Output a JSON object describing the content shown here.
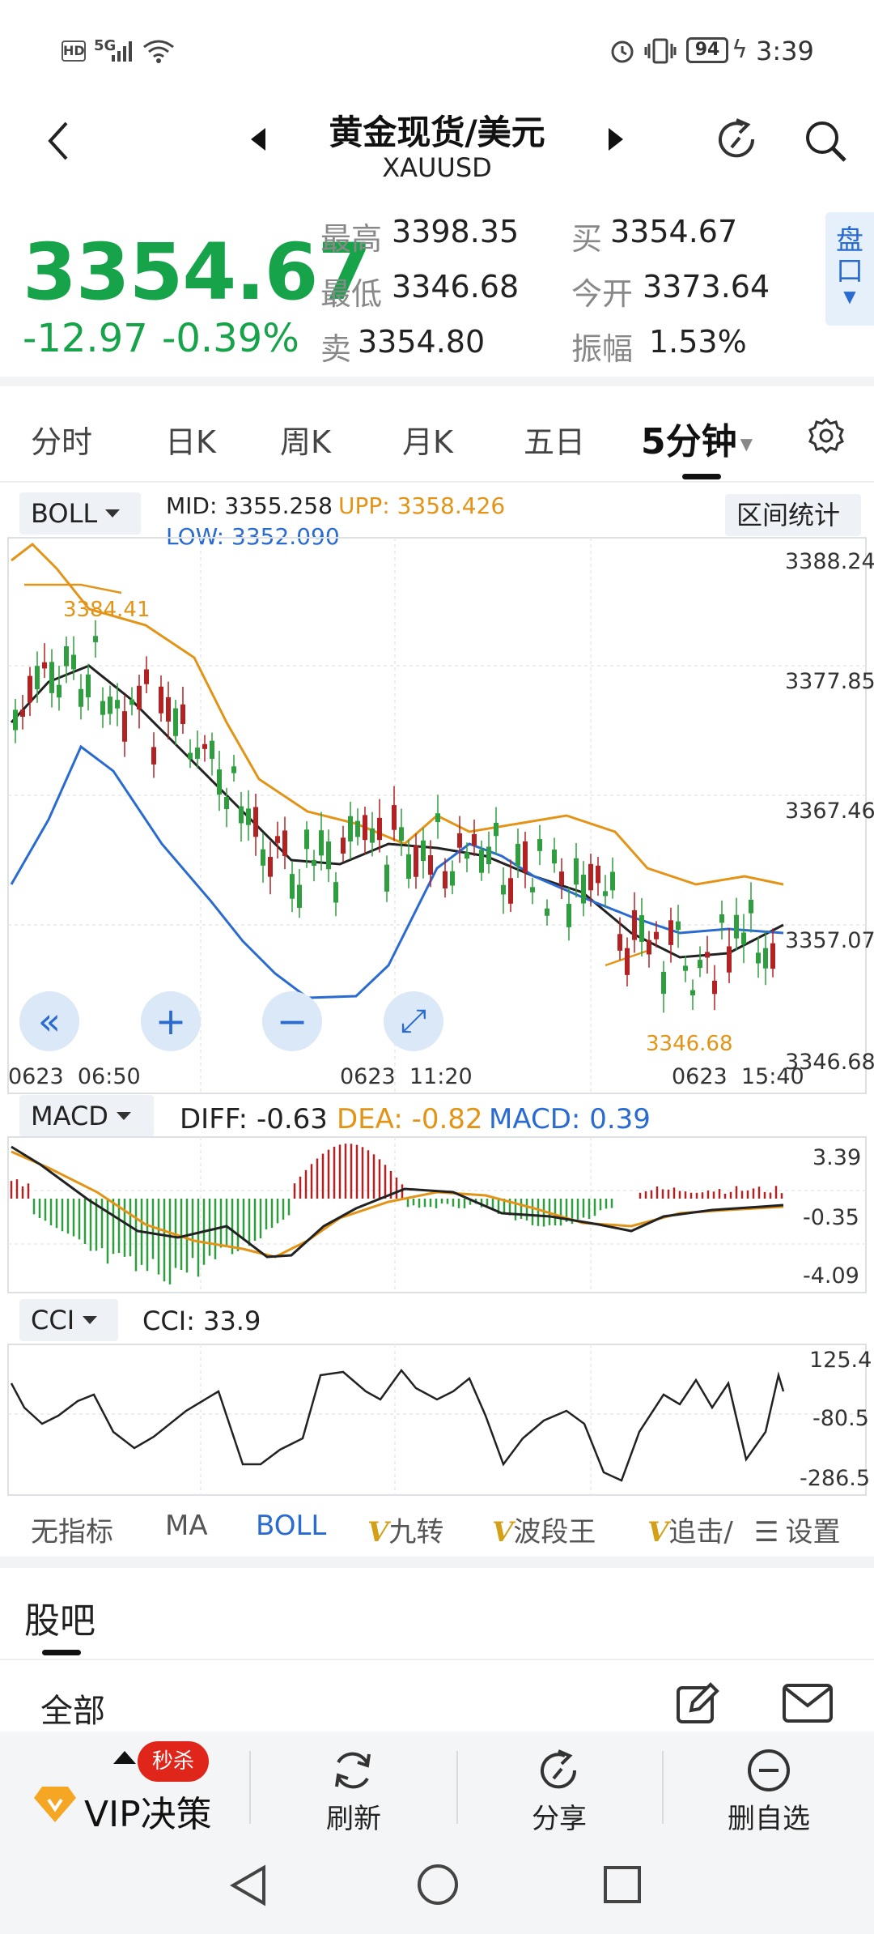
{
  "status_bar": {
    "network": "HD",
    "signal": "5G",
    "battery": "94",
    "time": "3:39"
  },
  "header": {
    "title": "黄金现货/美元",
    "symbol": "XAUUSD",
    "icons": [
      "back-icon",
      "prev-icon",
      "next-icon",
      "share-refresh-icon",
      "search-icon"
    ]
  },
  "quote": {
    "price": "3354.67",
    "change": "-12.97",
    "change_pct": "-0.39%",
    "high_label": "最高",
    "high": "3398.35",
    "low_label": "最低",
    "low": "3346.68",
    "sell_label": "卖",
    "sell": "3354.80",
    "buy_label": "买",
    "buy": "3354.67",
    "open_label": "今开",
    "open": "3373.64",
    "amp_label": "振幅",
    "amp": "1.53%",
    "pankou": "盘口",
    "colors": {
      "down": "#16a34a",
      "up": "#c0392b"
    }
  },
  "tabs": {
    "items": [
      "分时",
      "日K",
      "周K",
      "月K",
      "五日",
      "5分钟"
    ],
    "active": "5分钟"
  },
  "main_chart": {
    "indicator": "BOLL",
    "mid_label": "MID:",
    "mid": "3355.258",
    "upp_label": "UPP:",
    "upp": "3358.426",
    "low_label": "LOW:",
    "low": "3352.090",
    "range_stats": "区间统计",
    "y_labels": [
      "3388.24",
      "3377.85",
      "3367.46",
      "3357.07",
      "3346.68"
    ],
    "x_labels": [
      "0623  06:50",
      "0623  11:20",
      "0623  15:40"
    ],
    "annot_high": "3384.41",
    "annot_low": "3346.68",
    "zoom_buttons": [
      "«",
      "+",
      "−",
      "⤢"
    ]
  },
  "macd": {
    "indicator": "MACD",
    "diff_label": "DIFF:",
    "diff": "-0.63",
    "dea_label": "DEA:",
    "dea": "-0.82",
    "macd_label": "MACD:",
    "macd": "0.39",
    "y_labels": [
      "3.39",
      "-0.35",
      "-4.09"
    ]
  },
  "cci": {
    "indicator": "CCI",
    "value_label": "CCI:",
    "value": "33.9",
    "y_labels": [
      "125.4",
      "-80.5",
      "-286.5"
    ]
  },
  "indicator_bar": {
    "items": [
      "无指标",
      "MA",
      "BOLL",
      "九转",
      "波段王",
      "追击/"
    ],
    "active": "BOLL",
    "settings": "设置"
  },
  "forum": {
    "title": "股吧",
    "filter": "全部"
  },
  "bottom_bar": {
    "vip_label": "VIP决策",
    "badge": "秒杀",
    "refresh": "刷新",
    "share": "分享",
    "delete_fav": "删自选"
  },
  "chart_data": [
    {
      "type": "candlestick",
      "title": "黄金现货/美元 5分钟",
      "x_range": [
        "0623 06:50",
        "0623 15:40"
      ],
      "ylim": [
        3346.68,
        3388.24
      ],
      "y_ticks": [
        3388.24,
        3377.85,
        3367.46,
        3357.07,
        3346.68
      ],
      "series": [
        {
          "name": "MID",
          "last": 3355.258
        },
        {
          "name": "UPP",
          "last": 3358.426
        },
        {
          "name": "LOW",
          "last": 3352.09
        }
      ],
      "annotations": [
        {
          "text": "3384.41"
        },
        {
          "text": "3346.68"
        }
      ],
      "grid": true
    },
    {
      "type": "bar",
      "title": "MACD",
      "y_ticks": [
        3.39,
        -0.35,
        -4.09
      ],
      "series": [
        {
          "name": "DIFF",
          "last": -0.63
        },
        {
          "name": "DEA",
          "last": -0.82
        },
        {
          "name": "MACD",
          "last": 0.39
        }
      ]
    },
    {
      "type": "line",
      "title": "CCI",
      "y_ticks": [
        125.4,
        -80.5,
        -286.5
      ],
      "series": [
        {
          "name": "CCI",
          "last": 33.9
        }
      ]
    }
  ]
}
